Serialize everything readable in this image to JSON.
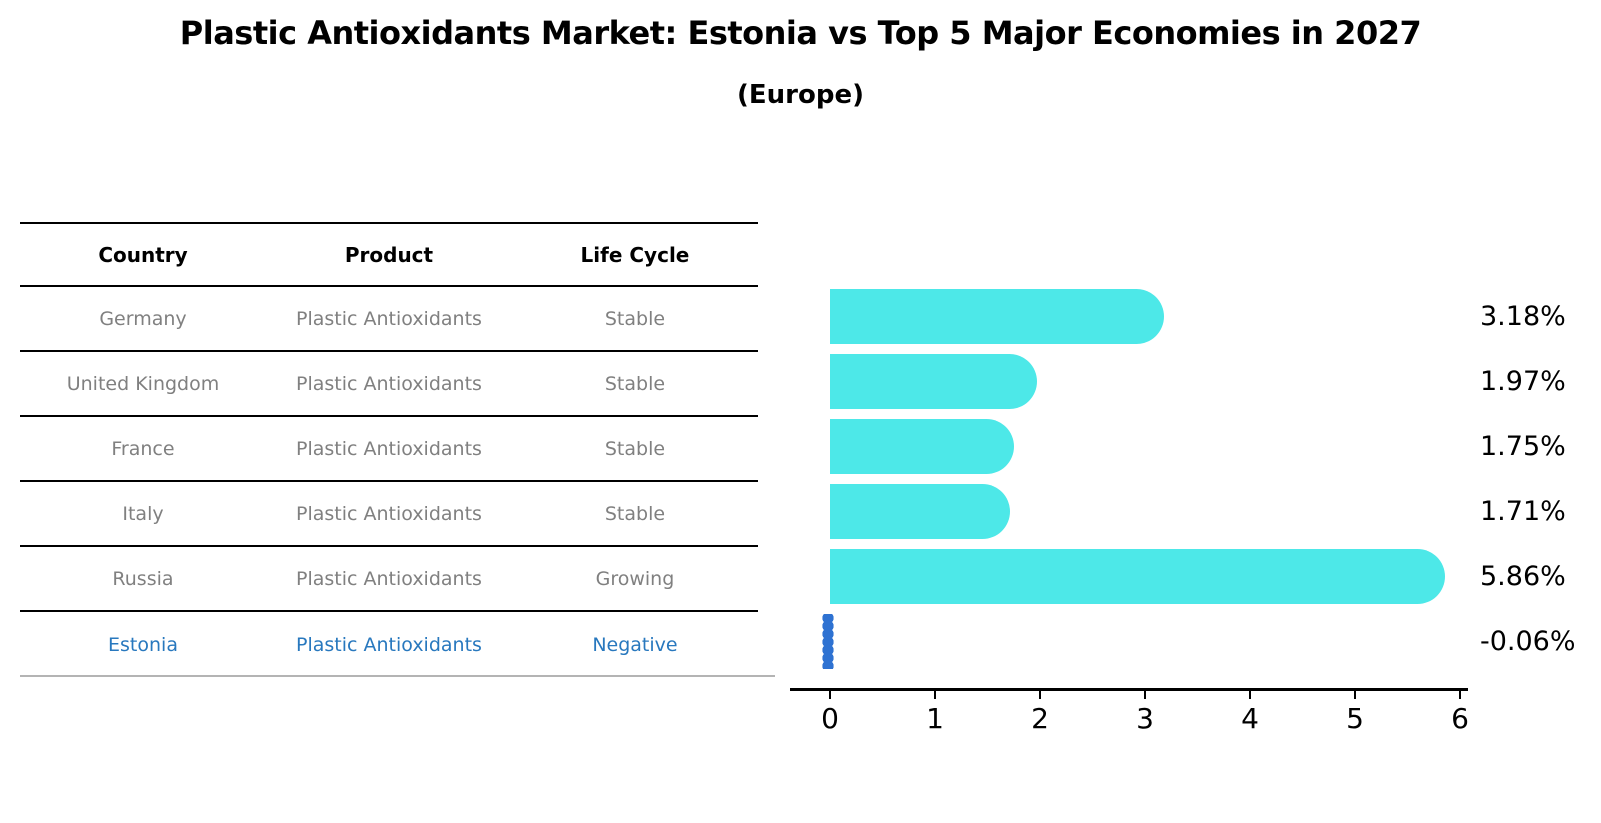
{
  "title": "Plastic Antioxidants Market: Estonia vs Top 5 Major Economies in 2027",
  "subtitle": "(Europe)",
  "table": {
    "headers": [
      "Country",
      "Product",
      "Life Cycle"
    ],
    "rows": [
      {
        "country": "Germany",
        "product": "Plastic Antioxidants",
        "life_cycle": "Stable",
        "highlight": false
      },
      {
        "country": "United Kingdom",
        "product": "Plastic Antioxidants",
        "life_cycle": "Stable",
        "highlight": false
      },
      {
        "country": "France",
        "product": "Plastic Antioxidants",
        "life_cycle": "Stable",
        "highlight": false
      },
      {
        "country": "Italy",
        "product": "Plastic Antioxidants",
        "life_cycle": "Stable",
        "highlight": false
      },
      {
        "country": "Russia",
        "product": "Plastic Antioxidants",
        "life_cycle": "Growing",
        "highlight": false
      },
      {
        "country": "Estonia",
        "product": "Plastic Antioxidants",
        "life_cycle": "Negative",
        "highlight": true
      }
    ]
  },
  "chart_data": {
    "type": "bar",
    "orientation": "horizontal",
    "title": "Plastic Antioxidants Market: Estonia vs Top 5 Major Economies in 2027 (Europe)",
    "categories": [
      "Germany",
      "United Kingdom",
      "France",
      "Italy",
      "Russia",
      "Estonia"
    ],
    "values": [
      3.18,
      1.97,
      1.75,
      1.71,
      5.86,
      -0.06
    ],
    "value_labels": [
      "3.18%",
      "1.97%",
      "1.75%",
      "1.71%",
      "5.86%",
      "-0.06%"
    ],
    "xlabel": "",
    "ylabel": "",
    "xlim": [
      0,
      6
    ],
    "xticks": [
      "0",
      "1",
      "2",
      "3",
      "4",
      "5",
      "6"
    ],
    "grid": false,
    "legend": false,
    "bar_color": "#4de8e8",
    "negative_bar_color": "#2e72d2",
    "highlight_text_color": "#2878be",
    "row_text_color": "#808080"
  }
}
